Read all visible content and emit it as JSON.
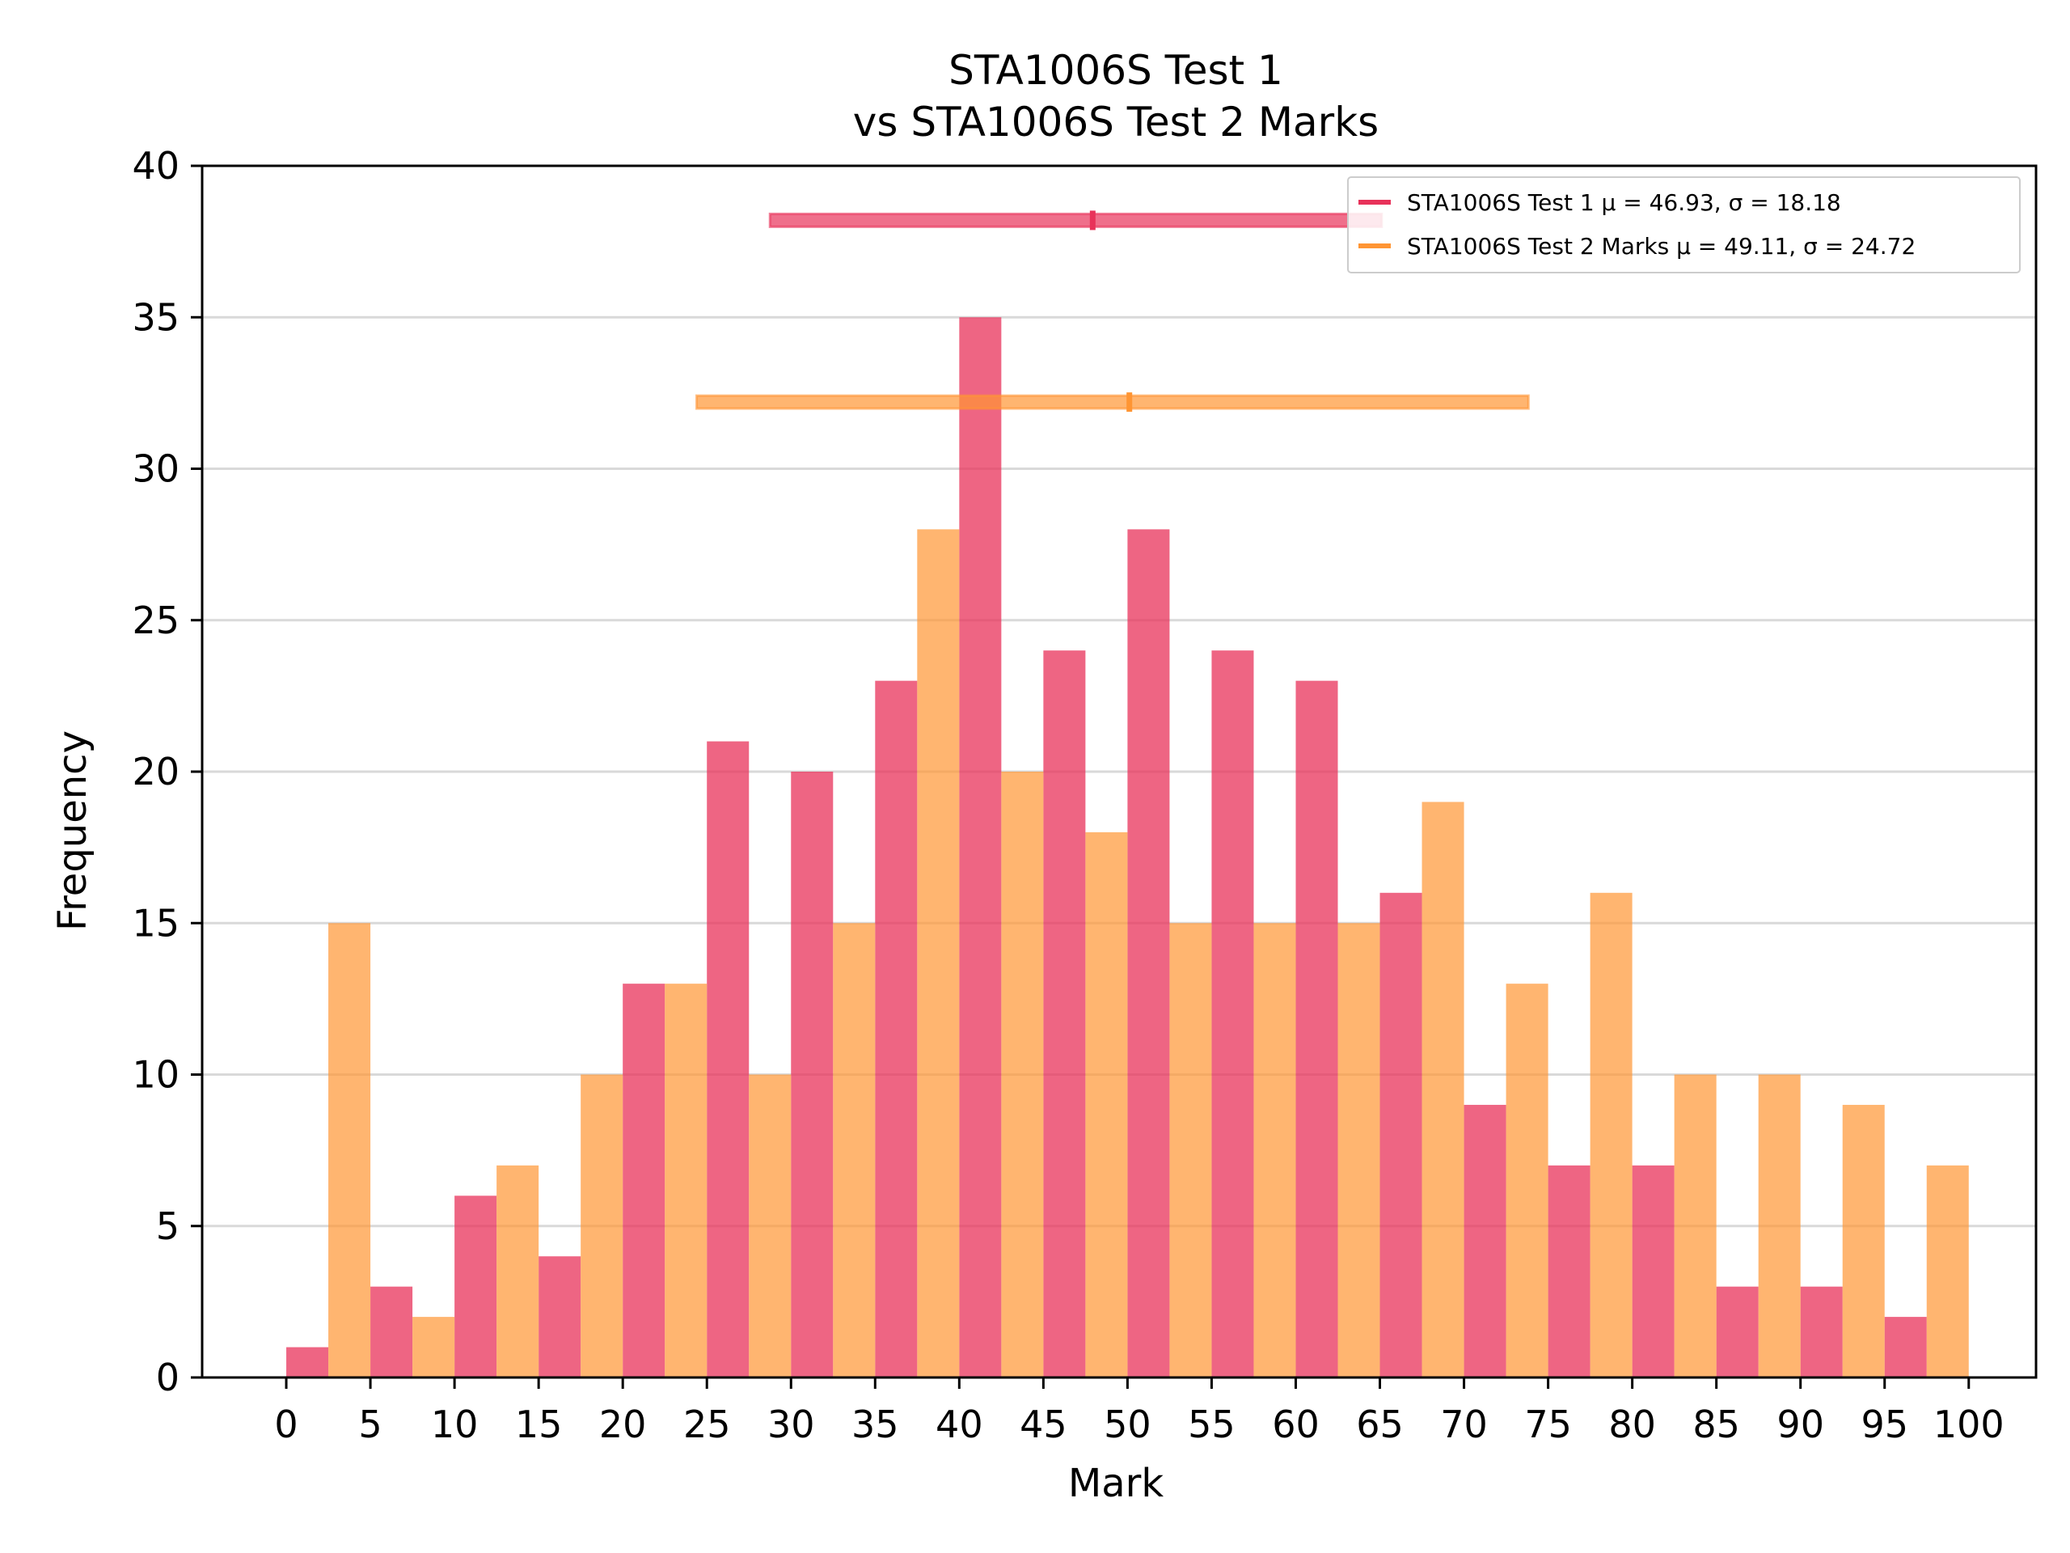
{
  "chart_data": {
    "type": "bar",
    "title_lines": [
      "STA1006S Test 1",
      "vs STA1006S Test 2 Marks"
    ],
    "xlabel": "Mark",
    "ylabel": "Frequency",
    "xlim": [
      -5,
      104
    ],
    "ylim": [
      0,
      40
    ],
    "bin_width": 5,
    "bin_starts": [
      0,
      5,
      10,
      15,
      20,
      25,
      30,
      35,
      40,
      45,
      50,
      55,
      60,
      65,
      70,
      75,
      80,
      85,
      90,
      95
    ],
    "x_ticks": [
      0,
      5,
      10,
      15,
      20,
      25,
      30,
      35,
      40,
      45,
      50,
      55,
      60,
      65,
      70,
      75,
      80,
      85,
      90,
      95,
      100
    ],
    "y_ticks": [
      0,
      5,
      10,
      15,
      20,
      25,
      30,
      35,
      40
    ],
    "grid": "horizontal",
    "legend_position": "top-right",
    "series": [
      {
        "name": "STA1006S Test 1",
        "legend_label": "STA1006S Test 1 μ = 46.93, σ = 18.18",
        "color": "#e8325a",
        "mean": 46.93,
        "std": 18.18,
        "range_y": 38.2,
        "values": [
          1,
          3,
          6,
          4,
          13,
          21,
          20,
          23,
          35,
          24,
          28,
          24,
          23,
          16,
          9,
          7,
          7,
          3,
          3,
          2
        ]
      },
      {
        "name": "STA1006S Test 2 Marks",
        "legend_label": "STA1006S Test 2 Marks μ = 49.11, σ = 24.72",
        "color": "#ff9533",
        "mean": 49.11,
        "std": 24.72,
        "range_y": 32.2,
        "values": [
          15,
          2,
          7,
          10,
          13,
          10,
          15,
          28,
          20,
          18,
          15,
          15,
          15,
          19,
          13,
          16,
          10,
          10,
          9,
          7
        ]
      }
    ]
  }
}
